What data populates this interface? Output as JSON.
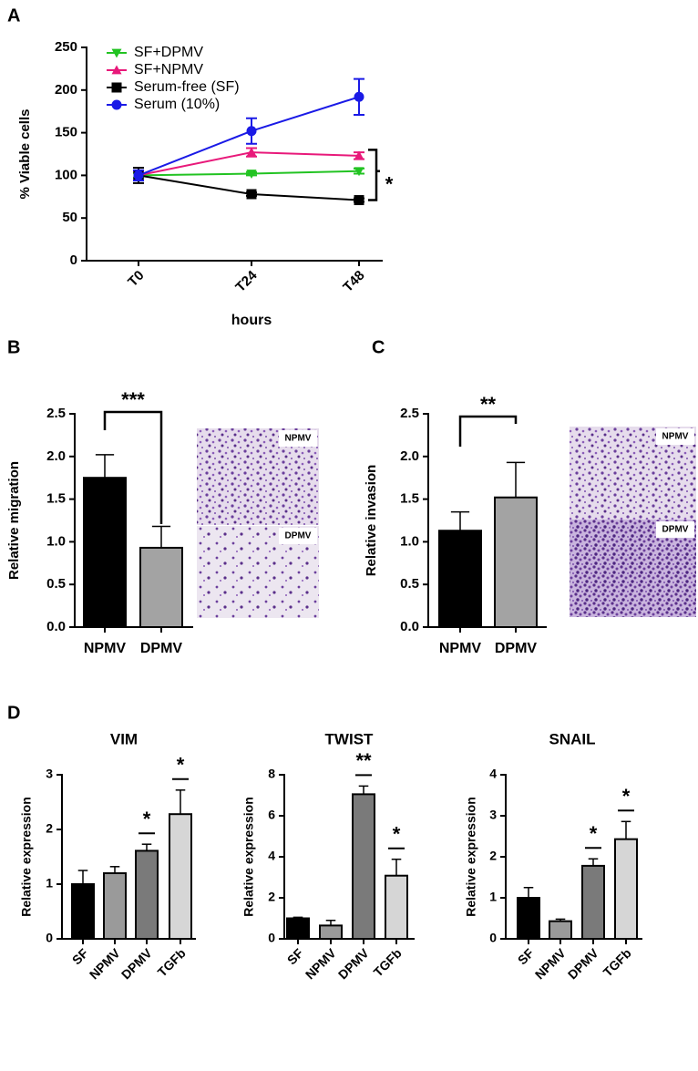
{
  "chart_data": [
    {
      "type": "line",
      "panel": "A",
      "ylabel": "% Viable cells",
      "xlabel": "hours",
      "categories": [
        "T0",
        "T24",
        "T48"
      ],
      "ylim": [
        0,
        250
      ],
      "yticks": [
        0,
        50,
        100,
        150,
        200,
        250
      ],
      "legend": "upper left",
      "significance": "*",
      "series": [
        {
          "name": "SF+DPMV",
          "color": "#22c322",
          "marker": "triangle-down",
          "values": [
            100,
            102,
            105
          ],
          "errors": [
            3,
            2,
            3
          ]
        },
        {
          "name": "SF+NPMV",
          "color": "#e8197a",
          "marker": "triangle-up",
          "values": [
            100,
            127,
            123
          ],
          "errors": [
            5,
            5,
            4
          ]
        },
        {
          "name": "Serum-free (SF)",
          "color": "#000000",
          "marker": "square",
          "values": [
            100,
            78,
            71
          ],
          "errors": [
            9,
            2,
            2
          ]
        },
        {
          "name": "Serum (10%)",
          "color": "#1a1ae6",
          "marker": "circle",
          "values": [
            100,
            152,
            192
          ],
          "errors": [
            6,
            15,
            21
          ]
        }
      ]
    },
    {
      "type": "bar",
      "panel": "B",
      "ylabel": "Relative migration",
      "categories": [
        "NPMV",
        "DPMV"
      ],
      "values": [
        1.75,
        0.93
      ],
      "errors": [
        0.27,
        0.25
      ],
      "colors": [
        "#000000",
        "#a3a3a3"
      ],
      "ylim": [
        0,
        2.5
      ],
      "yticks": [
        {
          "value": 0,
          "label": "0.0"
        },
        0.5,
        {
          "value": 1,
          "label": "1.0"
        },
        1.5,
        {
          "value": 2,
          "label": "2.0"
        },
        2.5
      ],
      "significance": "***",
      "image_labels": [
        "NPMV",
        "DPMV"
      ]
    },
    {
      "type": "bar",
      "panel": "C",
      "ylabel": "Relative invasion",
      "categories": [
        "NPMV",
        "DPMV"
      ],
      "values": [
        1.13,
        1.52
      ],
      "errors": [
        0.22,
        0.41
      ],
      "colors": [
        "#000000",
        "#a3a3a3"
      ],
      "ylim": [
        0,
        2.5
      ],
      "yticks": [
        {
          "value": 0,
          "label": "0.0"
        },
        0.5,
        {
          "value": 1,
          "label": "1.0"
        },
        1.5,
        {
          "value": 2,
          "label": "2.0"
        },
        2.5
      ],
      "significance": "**",
      "image_labels": [
        "NPMV",
        "DPMV"
      ]
    },
    {
      "type": "bar",
      "panel": "D",
      "title": "VIM",
      "ylabel": "Relative expression",
      "categories": [
        "SF",
        "NPMV",
        "DPMV",
        "TGFb"
      ],
      "values": [
        1.0,
        1.2,
        1.61,
        2.28
      ],
      "errors": [
        0.25,
        0.12,
        0.12,
        0.44
      ],
      "colors": [
        "#000000",
        "#9a9a9a",
        "#7a7a7a",
        "#d6d6d6"
      ],
      "ylim": [
        0,
        3
      ],
      "yticks": [
        0,
        1,
        2,
        3
      ],
      "significance": [
        null,
        null,
        "*",
        "*"
      ]
    },
    {
      "type": "bar",
      "title": "TWIST",
      "ylabel": "Relative expression",
      "categories": [
        "SF",
        "NPMV",
        "DPMV",
        "TGFb"
      ],
      "values": [
        1.0,
        0.65,
        7.05,
        3.08
      ],
      "errors": [
        0.05,
        0.25,
        0.4,
        0.8
      ],
      "colors": [
        "#000000",
        "#9a9a9a",
        "#7a7a7a",
        "#d6d6d6"
      ],
      "ylim": [
        0,
        8
      ],
      "yticks": [
        0,
        2,
        4,
        6,
        8
      ],
      "significance": [
        null,
        null,
        "**",
        "*"
      ]
    },
    {
      "type": "bar",
      "title": "SNAIL",
      "ylabel": "Relative expression",
      "categories": [
        "SF",
        "NPMV",
        "DPMV",
        "TGFb"
      ],
      "values": [
        1.0,
        0.43,
        1.78,
        2.43
      ],
      "errors": [
        0.25,
        0.05,
        0.17,
        0.43
      ],
      "colors": [
        "#000000",
        "#9a9a9a",
        "#7a7a7a",
        "#d6d6d6"
      ],
      "ylim": [
        0,
        4
      ],
      "yticks": [
        0,
        1,
        2,
        3,
        4
      ],
      "significance": [
        null,
        null,
        "*",
        "*"
      ]
    }
  ]
}
